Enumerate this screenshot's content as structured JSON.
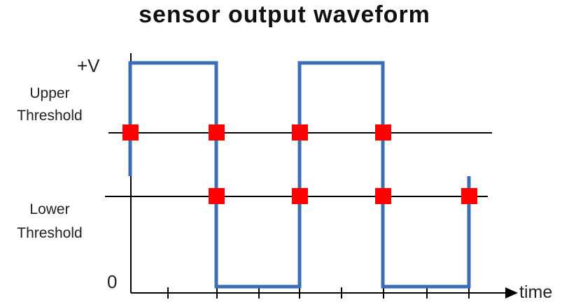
{
  "title": "sensor output waveform",
  "labels": {
    "plus_v": "+V",
    "upper_threshold": [
      "Upper",
      "Threshold"
    ],
    "lower_threshold": [
      "Lower",
      "Threshold"
    ],
    "zero": "0",
    "time": "time"
  },
  "colors": {
    "signal": "#3a6fb8",
    "marker": "#ff0000",
    "axis": "#000000"
  },
  "waveform": {
    "levels": {
      "high": "+V",
      "low": "0"
    },
    "upper_crossings": 4,
    "lower_crossings": 4
  }
}
